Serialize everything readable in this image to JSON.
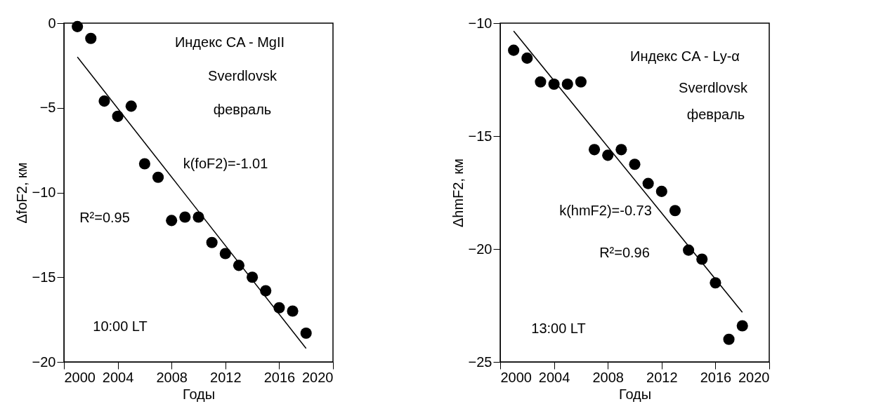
{
  "chart_data": [
    {
      "type": "scatter",
      "xlabel": "Годы",
      "ylabel": "ΔfoF2, км",
      "xlim": [
        2000,
        2020
      ],
      "xticks": [
        2000,
        2004,
        2008,
        2012,
        2016,
        2020
      ],
      "ylim": [
        -20,
        0
      ],
      "yticks": [
        -20,
        -15,
        -10,
        -5,
        0
      ],
      "grid": false,
      "annotations": [
        "Индекс CA - MgII",
        "Sverdlovsk",
        "февраль",
        "k(foF2)=-1.01",
        "R²=0.95",
        "10:00 LT"
      ],
      "series": [
        {
          "color": "#000000",
          "marker": "circle",
          "x": [
            2001,
            2002,
            2003,
            2004,
            2005,
            2006,
            2007,
            2008,
            2009,
            2010,
            2011,
            2012,
            2013,
            2014,
            2015,
            2016,
            2017,
            2018
          ],
          "values": [
            -0.2,
            -0.9,
            -4.6,
            -5.5,
            -4.9,
            -8.3,
            -9.1,
            -11.65,
            -11.45,
            -11.45,
            -12.95,
            -13.6,
            -14.3,
            -15.0,
            -15.8,
            -16.8,
            -17.0,
            -18.3
          ]
        },
        {
          "type": "line",
          "color": "#000000",
          "x": [
            2001,
            2018
          ],
          "values": [
            -2.0,
            -19.2
          ]
        }
      ]
    },
    {
      "type": "scatter",
      "xlabel": "Годы",
      "ylabel": "ΔhmF2, км",
      "xlim": [
        2000,
        2020
      ],
      "xticks": [
        2000,
        2004,
        2008,
        2012,
        2016,
        2020
      ],
      "ylim": [
        -25,
        -10
      ],
      "yticks": [
        -25,
        -20,
        -15,
        -10
      ],
      "grid": false,
      "annotations": [
        "Индекс CA - Ly-α",
        "Sverdlovsk",
        "февраль",
        "k(hmF2)=-0.73",
        "R²=0.96",
        "13:00 LT"
      ],
      "series": [
        {
          "color": "#000000",
          "marker": "circle",
          "x": [
            2001,
            2002,
            2003,
            2004,
            2005,
            2006,
            2007,
            2008,
            2009,
            2010,
            2011,
            2012,
            2013,
            2014,
            2015,
            2016,
            2017,
            2018
          ],
          "values": [
            -11.2,
            -11.55,
            -12.6,
            -12.7,
            -12.7,
            -12.6,
            -15.6,
            -15.85,
            -15.6,
            -16.25,
            -17.1,
            -17.45,
            -18.3,
            -20.05,
            -20.45,
            -21.5,
            -24.0,
            -23.4
          ]
        },
        {
          "type": "line",
          "color": "#000000",
          "x": [
            2001,
            2018
          ],
          "values": [
            -10.35,
            -22.8
          ]
        }
      ]
    }
  ]
}
